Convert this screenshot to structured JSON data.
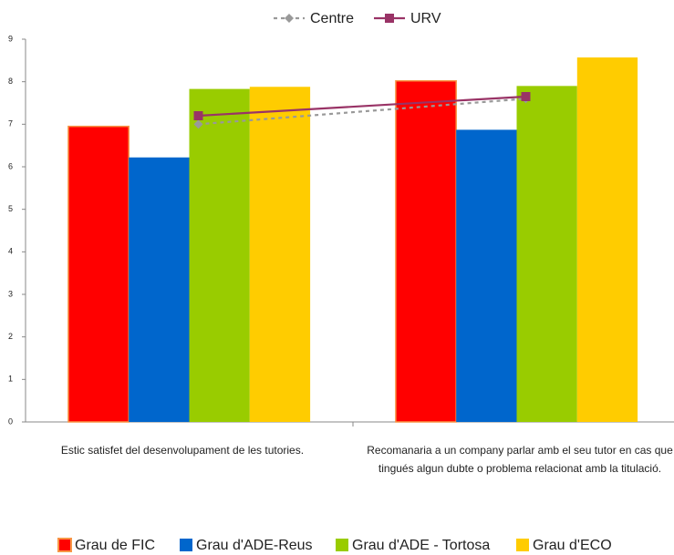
{
  "chart_data": {
    "type": "bar",
    "categories": [
      "Estic satisfet del desenvolupament de les tutories.",
      "Recomanaria a un company parlar amb el seu tutor en cas que tingués algun dubte o problema relacionat amb la titulació."
    ],
    "series": [
      {
        "name": "Grau de FIC",
        "color": "#ff0000",
        "values": [
          6.95,
          8.02
        ]
      },
      {
        "name": "Grau d'ADE-Reus",
        "color": "#0066cc",
        "values": [
          6.22,
          6.87
        ]
      },
      {
        "name": "Grau d'ADE - Tortosa",
        "color": "#99cc00",
        "values": [
          7.83,
          7.9
        ]
      },
      {
        "name": "Grau d'ECO",
        "color": "#ffcc00",
        "values": [
          7.88,
          8.57
        ]
      }
    ],
    "lines": [
      {
        "name": "Centre",
        "color": "#999999",
        "values": [
          7.0,
          7.6
        ]
      },
      {
        "name": "URV",
        "color": "#993366",
        "values": [
          7.2,
          7.65
        ]
      }
    ],
    "ylim": [
      0,
      9
    ],
    "yticks": [
      0,
      1,
      2,
      3,
      4,
      5,
      6,
      7,
      8,
      9
    ],
    "grid": false
  }
}
